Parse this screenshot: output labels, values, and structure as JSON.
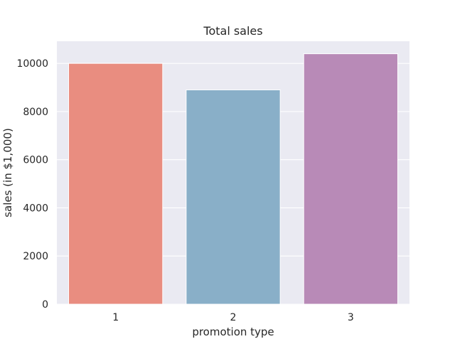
{
  "chart_data": {
    "type": "bar",
    "title": "Total sales",
    "xlabel": "promotion type",
    "ylabel": "sales (in $1,000)",
    "categories": [
      "1",
      "2",
      "3"
    ],
    "values": [
      10000,
      8900,
      10400
    ],
    "colors": [
      "#E98D80",
      "#89AFC8",
      "#B88AB7"
    ],
    "ylim": [
      0,
      10920
    ],
    "yticks": [
      0,
      2000,
      4000,
      6000,
      8000,
      10000
    ],
    "ytick_labels": [
      "0",
      "2000",
      "4000",
      "6000",
      "8000",
      "10000"
    ],
    "grid": true,
    "legend": null,
    "style": {
      "plot_background": "#EAEAF2",
      "grid_color": "#FFFFFF",
      "text_color": "#262626"
    }
  }
}
